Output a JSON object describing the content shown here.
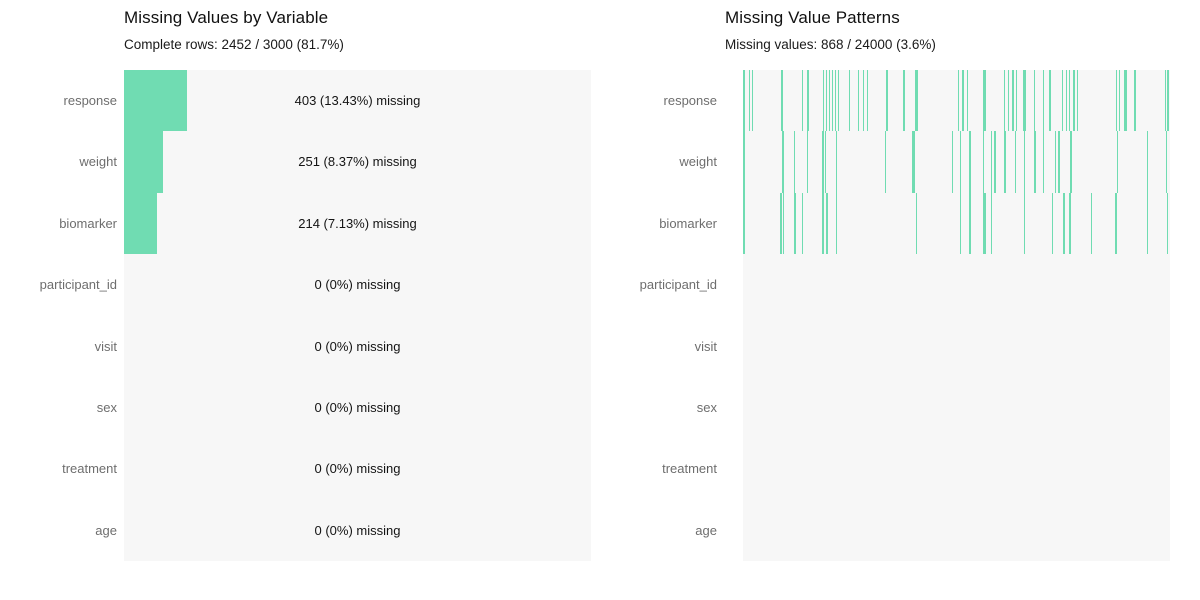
{
  "colors": {
    "accent": "#70dcb2",
    "panel_background": "#f7f7f7",
    "label_text": "#6e6e6e",
    "main_text": "#141414"
  },
  "left": {
    "title": "Missing Values by Variable",
    "subtitle": "Complete rows: 2452 / 3000 (81.7%)",
    "rows": [
      {
        "label": "response",
        "missing_count": 403,
        "missing_pct": 13.43,
        "annotation": "403 (13.43%) missing"
      },
      {
        "label": "weight",
        "missing_count": 251,
        "missing_pct": 8.37,
        "annotation": "251 (8.37%) missing"
      },
      {
        "label": "biomarker",
        "missing_count": 214,
        "missing_pct": 7.13,
        "annotation": "214 (7.13%) missing"
      },
      {
        "label": "participant_id",
        "missing_count": 0,
        "missing_pct": 0,
        "annotation": "0 (0%) missing"
      },
      {
        "label": "visit",
        "missing_count": 0,
        "missing_pct": 0,
        "annotation": "0 (0%) missing"
      },
      {
        "label": "sex",
        "missing_count": 0,
        "missing_pct": 0,
        "annotation": "0 (0%) missing"
      },
      {
        "label": "treatment",
        "missing_count": 0,
        "missing_pct": 0,
        "annotation": "0 (0%) missing"
      },
      {
        "label": "age",
        "missing_count": 0,
        "missing_pct": 0,
        "annotation": "0 (0%) missing"
      }
    ],
    "xlim": [
      0,
      100
    ]
  },
  "right": {
    "title": "Missing Value Patterns",
    "subtitle": "Missing values: 868 / 24000 (3.6%)",
    "rows": [
      "response",
      "weight",
      "biomarker",
      "participant_id",
      "visit",
      "sex",
      "treatment",
      "age"
    ],
    "patterns": {
      "response": [
        [
          0.001,
          1.5
        ],
        [
          0.014,
          1.5
        ],
        [
          0.021,
          1.5
        ],
        [
          0.089,
          1.5
        ],
        [
          0.138,
          1.5
        ],
        [
          0.15,
          1.5
        ],
        [
          0.187,
          1.5
        ],
        [
          0.194,
          1.5
        ],
        [
          0.201,
          1.5
        ],
        [
          0.208,
          1.5
        ],
        [
          0.215,
          1.5
        ],
        [
          0.222,
          1.5
        ],
        [
          0.248,
          1.5
        ],
        [
          0.269,
          1.5
        ],
        [
          0.281,
          1.5
        ],
        [
          0.29,
          1.5
        ],
        [
          0.335,
          1.5
        ],
        [
          0.375,
          1.5
        ],
        [
          0.403,
          3
        ],
        [
          0.503,
          1.5
        ],
        [
          0.513,
          1.5
        ],
        [
          0.524,
          1.5
        ],
        [
          0.562,
          3
        ],
        [
          0.611,
          1.5
        ],
        [
          0.62,
          1.5
        ],
        [
          0.63,
          1.5
        ],
        [
          0.639,
          1.5
        ],
        [
          0.656,
          3
        ],
        [
          0.681,
          1.5
        ],
        [
          0.702,
          1.5
        ],
        [
          0.717,
          1.5
        ],
        [
          0.747,
          1.5
        ],
        [
          0.756,
          1.5
        ],
        [
          0.763,
          1.5
        ],
        [
          0.773,
          1.5
        ],
        [
          0.782,
          1.5
        ],
        [
          0.873,
          1.5
        ],
        [
          0.88,
          1.5
        ],
        [
          0.892,
          3
        ],
        [
          0.916,
          1.5
        ],
        [
          0.988,
          1.5
        ],
        [
          0.993,
          1.5
        ]
      ],
      "weight": [
        [
          0.001,
          1.5
        ],
        [
          0.092,
          1.5
        ],
        [
          0.119,
          1.5
        ],
        [
          0.149,
          1.5
        ],
        [
          0.186,
          1.5
        ],
        [
          0.192,
          1.5
        ],
        [
          0.217,
          1.5
        ],
        [
          0.332,
          1.5
        ],
        [
          0.395,
          3
        ],
        [
          0.489,
          1.5
        ],
        [
          0.508,
          1.5
        ],
        [
          0.53,
          1.5
        ],
        [
          0.562,
          1.5
        ],
        [
          0.58,
          1.5
        ],
        [
          0.588,
          1.5
        ],
        [
          0.612,
          1.5
        ],
        [
          0.637,
          1.5
        ],
        [
          0.657,
          1.5
        ],
        [
          0.682,
          1.5
        ],
        [
          0.702,
          1.5
        ],
        [
          0.73,
          1.5
        ],
        [
          0.738,
          1.5
        ],
        [
          0.766,
          1.5
        ],
        [
          0.875,
          1.5
        ],
        [
          0.946,
          1.5
        ],
        [
          0.99,
          1.5
        ]
      ],
      "biomarker": [
        [
          0.001,
          1.5
        ],
        [
          0.087,
          1.5
        ],
        [
          0.093,
          1.5
        ],
        [
          0.12,
          1.5
        ],
        [
          0.138,
          1.5
        ],
        [
          0.186,
          1.5
        ],
        [
          0.195,
          1.5
        ],
        [
          0.217,
          1.5
        ],
        [
          0.405,
          1.5
        ],
        [
          0.508,
          1.5
        ],
        [
          0.53,
          1.5
        ],
        [
          0.561,
          3
        ],
        [
          0.58,
          1.5
        ],
        [
          0.657,
          1.5
        ],
        [
          0.723,
          1.5
        ],
        [
          0.75,
          1.5
        ],
        [
          0.764,
          1.5
        ],
        [
          0.814,
          1.5
        ],
        [
          0.872,
          1.5
        ],
        [
          0.946,
          1.5
        ],
        [
          0.992,
          1.5
        ]
      ],
      "participant_id": [],
      "visit": [],
      "sex": [],
      "treatment": [],
      "age": []
    }
  },
  "chart_data": [
    {
      "type": "bar",
      "orientation": "horizontal",
      "title": "Missing Values by Variable",
      "subtitle": "Complete rows: 2452 / 3000 (81.7%)",
      "categories": [
        "response",
        "weight",
        "biomarker",
        "participant_id",
        "visit",
        "sex",
        "treatment",
        "age"
      ],
      "values_pct_missing": [
        13.43,
        8.37,
        7.13,
        0,
        0,
        0,
        0,
        0
      ],
      "values_count_missing": [
        403,
        251,
        214,
        0,
        0,
        0,
        0,
        0
      ],
      "data_labels": [
        "403 (13.43%) missing",
        "251 (8.37%) missing",
        "214 (7.13%) missing",
        "0 (0%) missing",
        "0 (0%) missing",
        "0 (0%) missing",
        "0 (0%) missing",
        "0 (0%) missing"
      ],
      "xlabel": "",
      "ylabel": "",
      "xlim": [
        0,
        100
      ],
      "grid": false,
      "legend": false,
      "bar_color": "#70dcb2",
      "plot_background": "#f7f7f7"
    },
    {
      "type": "heatmap",
      "title": "Missing Value Patterns",
      "subtitle": "Missing values: 868 / 24000 (3.6%)",
      "rows": [
        "response",
        "weight",
        "biomarker",
        "participant_id",
        "visit",
        "sex",
        "treatment",
        "age"
      ],
      "description": "Vertical tick marks indicate missing observations by record position; only response, weight and biomarker rows contain marks.",
      "rows_with_missing": [
        "response",
        "weight",
        "biomarker"
      ],
      "total_missing": 868,
      "total_cells": 24000,
      "missing_pct": 3.6,
      "mark_color": "#70dcb2",
      "plot_background": "#f7f7f7",
      "grid": false,
      "legend": false
    }
  ]
}
